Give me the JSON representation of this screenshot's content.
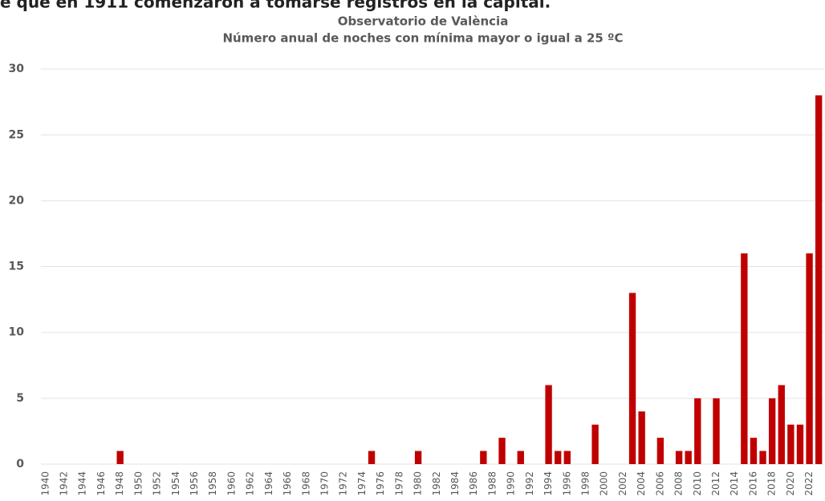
{
  "caption": "e que en 1911 comenzaron a tomarse registros en la capital.",
  "chart_data": {
    "type": "bar",
    "title": "Observatorio de València",
    "subtitle": "Número anual de noches con mínima mayor o igual a 25 ºC",
    "categories": [
      "1940",
      null,
      "1942",
      null,
      "1944",
      null,
      "1946",
      null,
      "1948",
      null,
      "1950",
      null,
      "1952",
      null,
      "1954",
      null,
      "1956",
      null,
      "1958",
      null,
      "1960",
      null,
      "1962",
      null,
      "1964",
      null,
      "1966",
      null,
      "1968",
      null,
      "1970",
      null,
      "1972",
      null,
      "1974",
      null,
      "1976",
      null,
      "1978",
      null,
      "1980",
      null,
      "1982",
      null,
      "1984",
      null,
      "1986",
      null,
      "1988",
      null,
      "1990",
      null,
      "1992",
      null,
      "1994",
      null,
      "1996",
      null,
      "1998",
      null,
      "2000",
      null,
      "2002",
      null,
      "2004",
      null,
      "2006",
      null,
      "2008",
      null,
      "2010",
      null,
      "2012",
      null,
      "2014",
      null,
      "2016",
      null,
      "2018",
      null,
      "2020",
      null,
      "2022",
      null
    ],
    "values": [
      0,
      0,
      0,
      0,
      0,
      0,
      0,
      0,
      1,
      0,
      0,
      0,
      0,
      0,
      0,
      0,
      0,
      0,
      0,
      0,
      0,
      0,
      0,
      0,
      0,
      0,
      0,
      0,
      0,
      0,
      0,
      0,
      0,
      0,
      0,
      1,
      0,
      0,
      0,
      0,
      1,
      0,
      0,
      0,
      0,
      0,
      0,
      1,
      0,
      2,
      0,
      1,
      0,
      0,
      6,
      1,
      1,
      0,
      0,
      3,
      0,
      0,
      0,
      13,
      4,
      0,
      2,
      0,
      1,
      1,
      5,
      0,
      5,
      0,
      0,
      16,
      2,
      1,
      5,
      6,
      3,
      3,
      16,
      28
    ],
    "color": "#c00000",
    "ylim": [
      0,
      34
    ],
    "yticks": [
      0,
      5,
      10,
      15,
      20,
      25,
      30
    ],
    "grid": true
  }
}
